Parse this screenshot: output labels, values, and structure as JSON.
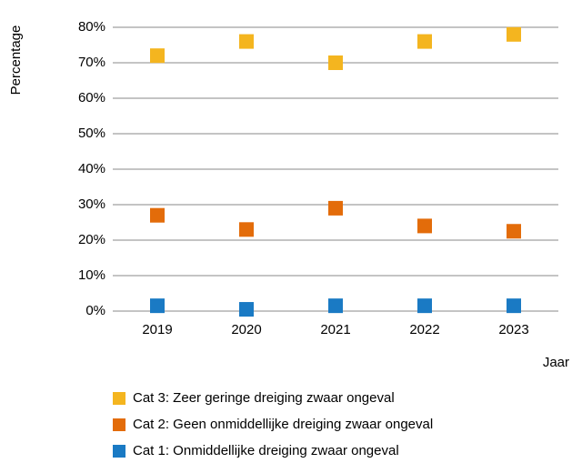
{
  "chart_data": {
    "type": "scatter",
    "y_label": "Percentage",
    "x_label": "Jaar",
    "categories": [
      "2019",
      "2020",
      "2021",
      "2022",
      "2023"
    ],
    "series": [
      {
        "name": "Cat 3: Zeer geringe dreiging zwaar ongeval",
        "color": "#f4b51f",
        "values": [
          72,
          76,
          70,
          76,
          78
        ]
      },
      {
        "name": "Cat 2: Geen onmiddellijke dreiging zwaar ongeval",
        "color": "#e36c0a",
        "values": [
          27,
          23,
          29,
          24,
          22.5
        ]
      },
      {
        "name": "Cat 1: Onmiddellijke dreiging zwaar ongeval",
        "color": "#1a7ac4",
        "values": [
          1.5,
          0.5,
          1.5,
          1.5,
          1.5
        ]
      }
    ],
    "ylim": [
      0,
      80
    ],
    "yticks": [
      {
        "value": 0,
        "label": "0%"
      },
      {
        "value": 10,
        "label": "10%"
      },
      {
        "value": 20,
        "label": "20%"
      },
      {
        "value": 30,
        "label": "30%"
      },
      {
        "value": 40,
        "label": "40%"
      },
      {
        "value": 50,
        "label": "50%"
      },
      {
        "value": 60,
        "label": "60%"
      },
      {
        "value": 70,
        "label": "70%"
      },
      {
        "value": 80,
        "label": "80%"
      }
    ],
    "grid": true
  }
}
